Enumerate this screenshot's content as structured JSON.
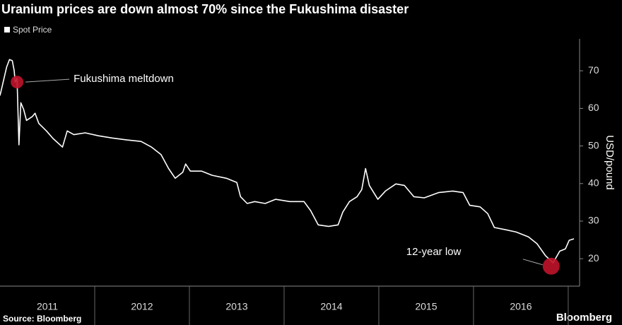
{
  "chart_data": {
    "type": "line",
    "title": "Uranium prices are down almost 70% since the Fukushima disaster",
    "y_label": "USD/pound",
    "source": "Source: Bloomberg",
    "brand": "Bloomberg",
    "x": [
      2011.0,
      2011.07,
      2011.1,
      2011.13,
      2011.15,
      2011.16,
      2011.18,
      2011.2,
      2011.22,
      2011.25,
      2011.28,
      2011.34,
      2011.37,
      2011.41,
      2011.49,
      2011.56,
      2011.66,
      2011.71,
      2011.78,
      2011.9,
      2012.04,
      2012.19,
      2012.34,
      2012.49,
      2012.6,
      2012.7,
      2012.78,
      2012.85,
      2012.93,
      2012.96,
      2013.01,
      2013.13,
      2013.24,
      2013.39,
      2013.5,
      2013.54,
      2013.61,
      2013.69,
      2013.8,
      2013.91,
      2014.06,
      2014.21,
      2014.28,
      2014.36,
      2014.47,
      2014.57,
      2014.62,
      2014.69,
      2014.77,
      2014.82,
      2014.86,
      2014.9,
      2014.99,
      2015.07,
      2015.18,
      2015.27,
      2015.37,
      2015.48,
      2015.63,
      2015.78,
      2015.89,
      2015.96,
      2016.07,
      2016.15,
      2016.22,
      2016.34,
      2016.45,
      2016.58,
      2016.67,
      2016.76,
      2016.84,
      2016.91,
      2016.97,
      2017.01,
      2017.06
    ],
    "series": [
      {
        "name": "Spot Price",
        "color": "#ffffff",
        "values": [
          63.4,
          71,
          73,
          72.7,
          70,
          67,
          68,
          50.3,
          61.5,
          59.7,
          56.8,
          57.8,
          58.7,
          56,
          54,
          52,
          49.7,
          54,
          53,
          53.5,
          52.7,
          52.1,
          51.6,
          51.2,
          49.7,
          47.7,
          44,
          41.4,
          43,
          45.2,
          43.3,
          43.3,
          42.2,
          41.4,
          40.3,
          36.5,
          34.7,
          35.2,
          34.7,
          35.8,
          35.2,
          35.2,
          32.8,
          29,
          28.6,
          29,
          32.4,
          35.2,
          36.5,
          38.4,
          44,
          39.5,
          35.8,
          38,
          39.9,
          39.5,
          36.5,
          36.2,
          37.6,
          38,
          37.6,
          34.2,
          33.8,
          32,
          28.3,
          27.7,
          27.1,
          25.8,
          24,
          20.8,
          18.9,
          22,
          22.6,
          24.9,
          25.3
        ]
      }
    ],
    "annotations": [
      {
        "text": "Fukushima meltdown",
        "x": 2011.18,
        "y": 67,
        "color": "#c0132a"
      },
      {
        "text": "12-year low",
        "x": 2016.82,
        "y": 18,
        "color": "#c0132a"
      }
    ],
    "xlim": [
      2011.0,
      2017.12
    ],
    "xticks": [
      {
        "value": 2011.5,
        "label": "2011"
      },
      {
        "value": 2012.5,
        "label": "2012"
      },
      {
        "value": 2013.5,
        "label": "2013"
      },
      {
        "value": 2014.5,
        "label": "2014"
      },
      {
        "value": 2015.5,
        "label": "2015"
      },
      {
        "value": 2016.5,
        "label": "2016"
      }
    ],
    "ylim": [
      12.7,
      78.5
    ],
    "yticks": [
      20,
      30,
      40,
      50,
      60,
      70
    ],
    "y_axis_side": "right",
    "legend": "top-left",
    "grid": false
  }
}
